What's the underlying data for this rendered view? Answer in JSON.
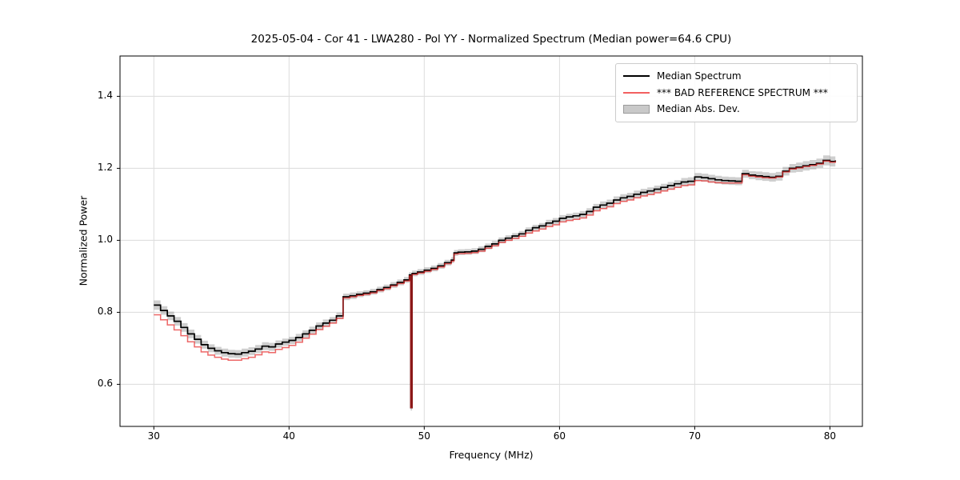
{
  "figure": {
    "title": "2025-05-04 - Cor 41 - LWA280 - Pol YY - Normalized Spectrum (Median power=64.6 CPU)",
    "xlabel": "Frequency (MHz)",
    "ylabel": "Normalized Power",
    "background_color": "#ffffff",
    "grid_color": "#dcdcdc",
    "spine_color": "#000000"
  },
  "legend": {
    "position": "upper right",
    "items": [
      {
        "label": "Median Spectrum",
        "type": "line",
        "color": "#000000"
      },
      {
        "label": "*** BAD REFERENCE SPECTRUM ***",
        "type": "line",
        "color": "#f25f5f"
      },
      {
        "label": "Median Abs. Dev.",
        "type": "patch",
        "color": "#c9c9c9"
      }
    ]
  },
  "chart_data": {
    "type": "line",
    "title": "2025-05-04 - Cor 41 - LWA280 - Pol YY - Normalized Spectrum (Median power=64.6 CPU)",
    "xlabel": "Frequency (MHz)",
    "ylabel": "Normalized Power",
    "xlim": [
      27.5,
      82.4
    ],
    "ylim": [
      0.483,
      1.512
    ],
    "x_ticks": [
      30,
      40,
      50,
      60,
      70,
      80
    ],
    "y_ticks": [
      0.6,
      0.8,
      1.0,
      1.2,
      1.4
    ],
    "y_tick_labels": [
      "0.6",
      "0.8",
      "1.0",
      "1.2",
      "1.4"
    ],
    "grid": true,
    "legend_position": "upper right",
    "line_style": "steps",
    "annotations": {
      "rfi_notch_freq_mhz": 49.0,
      "rfi_notch_min_power": 0.535,
      "median_power_cpu": 64.6
    },
    "x": [
      30,
      30.5,
      31,
      31.5,
      32,
      32.5,
      33,
      33.5,
      34,
      34.5,
      35,
      35.5,
      36,
      36.5,
      37,
      37.5,
      38,
      38.5,
      39,
      39.5,
      40,
      40.5,
      41,
      41.5,
      42,
      42.5,
      43,
      43.5,
      44,
      44.5,
      45,
      45.5,
      46,
      46.5,
      47,
      47.5,
      48,
      48.5,
      48.9,
      49,
      49.1,
      49.5,
      50,
      50.5,
      51,
      51.5,
      52,
      52.2,
      52.5,
      53,
      53.5,
      54,
      54.5,
      55,
      55.5,
      56,
      56.5,
      57,
      57.5,
      58,
      58.5,
      59,
      59.5,
      60,
      60.5,
      61,
      61.5,
      62,
      62.5,
      63,
      63.5,
      64,
      64.5,
      65,
      65.5,
      66,
      66.5,
      67,
      67.5,
      68,
      68.5,
      69,
      69.5,
      70,
      70.5,
      71,
      71.5,
      72,
      72.5,
      73,
      73.5,
      74,
      74.5,
      75,
      75.5,
      76,
      76.5,
      77,
      77.5,
      78,
      78.5,
      79,
      79.5,
      80,
      80.4
    ],
    "series": [
      {
        "name": "Median Spectrum",
        "color": "#000000",
        "y": [
          0.82,
          0.805,
          0.79,
          0.775,
          0.758,
          0.74,
          0.725,
          0.71,
          0.7,
          0.693,
          0.688,
          0.685,
          0.684,
          0.688,
          0.692,
          0.698,
          0.706,
          0.704,
          0.712,
          0.717,
          0.722,
          0.73,
          0.74,
          0.75,
          0.762,
          0.77,
          0.778,
          0.79,
          0.843,
          0.846,
          0.85,
          0.853,
          0.857,
          0.863,
          0.869,
          0.876,
          0.883,
          0.89,
          0.904,
          0.535,
          0.908,
          0.912,
          0.917,
          0.922,
          0.929,
          0.938,
          0.945,
          0.965,
          0.967,
          0.968,
          0.97,
          0.975,
          0.983,
          0.99,
          1.0,
          1.006,
          1.012,
          1.018,
          1.028,
          1.035,
          1.04,
          1.048,
          1.053,
          1.061,
          1.065,
          1.068,
          1.072,
          1.08,
          1.092,
          1.098,
          1.103,
          1.112,
          1.118,
          1.122,
          1.128,
          1.133,
          1.137,
          1.142,
          1.147,
          1.152,
          1.157,
          1.162,
          1.164,
          1.176,
          1.174,
          1.171,
          1.168,
          1.166,
          1.165,
          1.164,
          1.185,
          1.181,
          1.179,
          1.177,
          1.175,
          1.178,
          1.192,
          1.2,
          1.203,
          1.207,
          1.21,
          1.214,
          1.222,
          1.219,
          1.222
        ]
      },
      {
        "name": "*** BAD REFERENCE SPECTRUM ***",
        "color": "#e62626",
        "opacity": 0.7,
        "y": [
          0.793,
          0.779,
          0.765,
          0.751,
          0.735,
          0.718,
          0.704,
          0.69,
          0.681,
          0.675,
          0.67,
          0.667,
          0.667,
          0.671,
          0.675,
          0.682,
          0.69,
          0.688,
          0.697,
          0.702,
          0.708,
          0.717,
          0.728,
          0.739,
          0.752,
          0.761,
          0.77,
          0.783,
          0.84,
          0.843,
          0.847,
          0.85,
          0.854,
          0.86,
          0.866,
          0.873,
          0.88,
          0.887,
          0.901,
          0.535,
          0.905,
          0.909,
          0.914,
          0.919,
          0.926,
          0.935,
          0.942,
          0.962,
          0.963,
          0.964,
          0.966,
          0.97,
          0.978,
          0.985,
          0.994,
          1.0,
          1.005,
          1.011,
          1.02,
          1.026,
          1.031,
          1.038,
          1.043,
          1.051,
          1.055,
          1.058,
          1.062,
          1.07,
          1.082,
          1.088,
          1.093,
          1.102,
          1.108,
          1.112,
          1.118,
          1.123,
          1.127,
          1.132,
          1.137,
          1.142,
          1.147,
          1.152,
          1.154,
          1.166,
          1.165,
          1.162,
          1.16,
          1.159,
          1.159,
          1.159,
          1.182,
          1.178,
          1.176,
          1.174,
          1.173,
          1.176,
          1.19,
          1.198,
          1.201,
          1.205,
          1.208,
          1.212,
          1.22,
          1.217,
          1.22
        ]
      },
      {
        "name": "Median Abs. Dev.",
        "type": "band_around_median",
        "color": "#c9c9c9",
        "half_width": [
          0.013,
          0.012,
          0.012,
          0.012,
          0.012,
          0.012,
          0.012,
          0.011,
          0.011,
          0.011,
          0.011,
          0.011,
          0.011,
          0.011,
          0.011,
          0.011,
          0.011,
          0.011,
          0.01,
          0.01,
          0.01,
          0.01,
          0.01,
          0.01,
          0.01,
          0.01,
          0.009,
          0.009,
          0.009,
          0.009,
          0.008,
          0.008,
          0.008,
          0.008,
          0.008,
          0.008,
          0.008,
          0.008,
          0.008,
          0.008,
          0.008,
          0.008,
          0.008,
          0.008,
          0.008,
          0.008,
          0.008,
          0.008,
          0.008,
          0.008,
          0.008,
          0.008,
          0.008,
          0.008,
          0.008,
          0.008,
          0.008,
          0.008,
          0.008,
          0.008,
          0.008,
          0.009,
          0.009,
          0.009,
          0.009,
          0.009,
          0.009,
          0.009,
          0.009,
          0.01,
          0.01,
          0.01,
          0.01,
          0.01,
          0.01,
          0.01,
          0.01,
          0.01,
          0.01,
          0.01,
          0.01,
          0.011,
          0.011,
          0.011,
          0.011,
          0.011,
          0.011,
          0.011,
          0.011,
          0.011,
          0.011,
          0.011,
          0.012,
          0.012,
          0.012,
          0.012,
          0.012,
          0.012,
          0.013,
          0.013,
          0.013,
          0.013,
          0.014,
          0.014,
          0.015,
          0.014
        ]
      }
    ]
  }
}
